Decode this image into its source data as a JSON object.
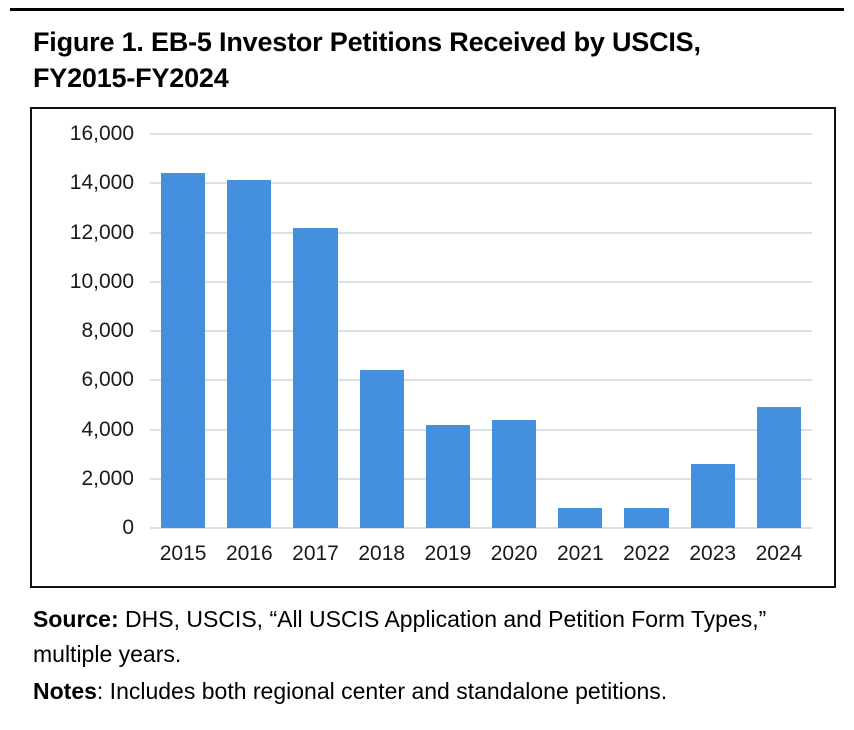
{
  "page": {
    "title_line1": "Figure 1. EB-5 Investor Petitions Received by USCIS,",
    "title_line2": "FY2015-FY2024"
  },
  "notes": {
    "source_label": "Source:",
    "source_text": " DHS, USCIS, “All USCIS Application and Petition Form Types,” multiple years.",
    "notes_label": "Notes",
    "notes_text": ": Includes both regional center and standalone petitions."
  },
  "colors": {
    "bar": "#4590de",
    "gridline": "#d9e0e9",
    "frame_border": "#111111",
    "top_rule": "#000000",
    "text": "#000000"
  },
  "chart_data": {
    "type": "bar",
    "title": "Figure 1. EB-5 Investor Petitions Received by USCIS, FY2015-FY2024",
    "categories": [
      "2015",
      "2016",
      "2017",
      "2018",
      "2019",
      "2020",
      "2021",
      "2022",
      "2023",
      "2024"
    ],
    "values": [
      14400,
      14150,
      12200,
      6400,
      4200,
      4400,
      800,
      800,
      2600,
      4900
    ],
    "xlabel": "",
    "ylabel": "",
    "ylim": [
      0,
      16000
    ],
    "yticks": [
      0,
      2000,
      4000,
      6000,
      8000,
      10000,
      12000,
      14000,
      16000
    ],
    "ytick_labels": [
      "0",
      "2,000",
      "4,000",
      "6,000",
      "8,000",
      "10,000",
      "12,000",
      "14,000",
      "16,000"
    ],
    "grid": true,
    "legend": false,
    "source_note": "Source: DHS, USCIS, “All USCIS Application and Petition Form Types,” multiple years.",
    "notes_note": "Notes: Includes both regional center and standalone petitions."
  }
}
